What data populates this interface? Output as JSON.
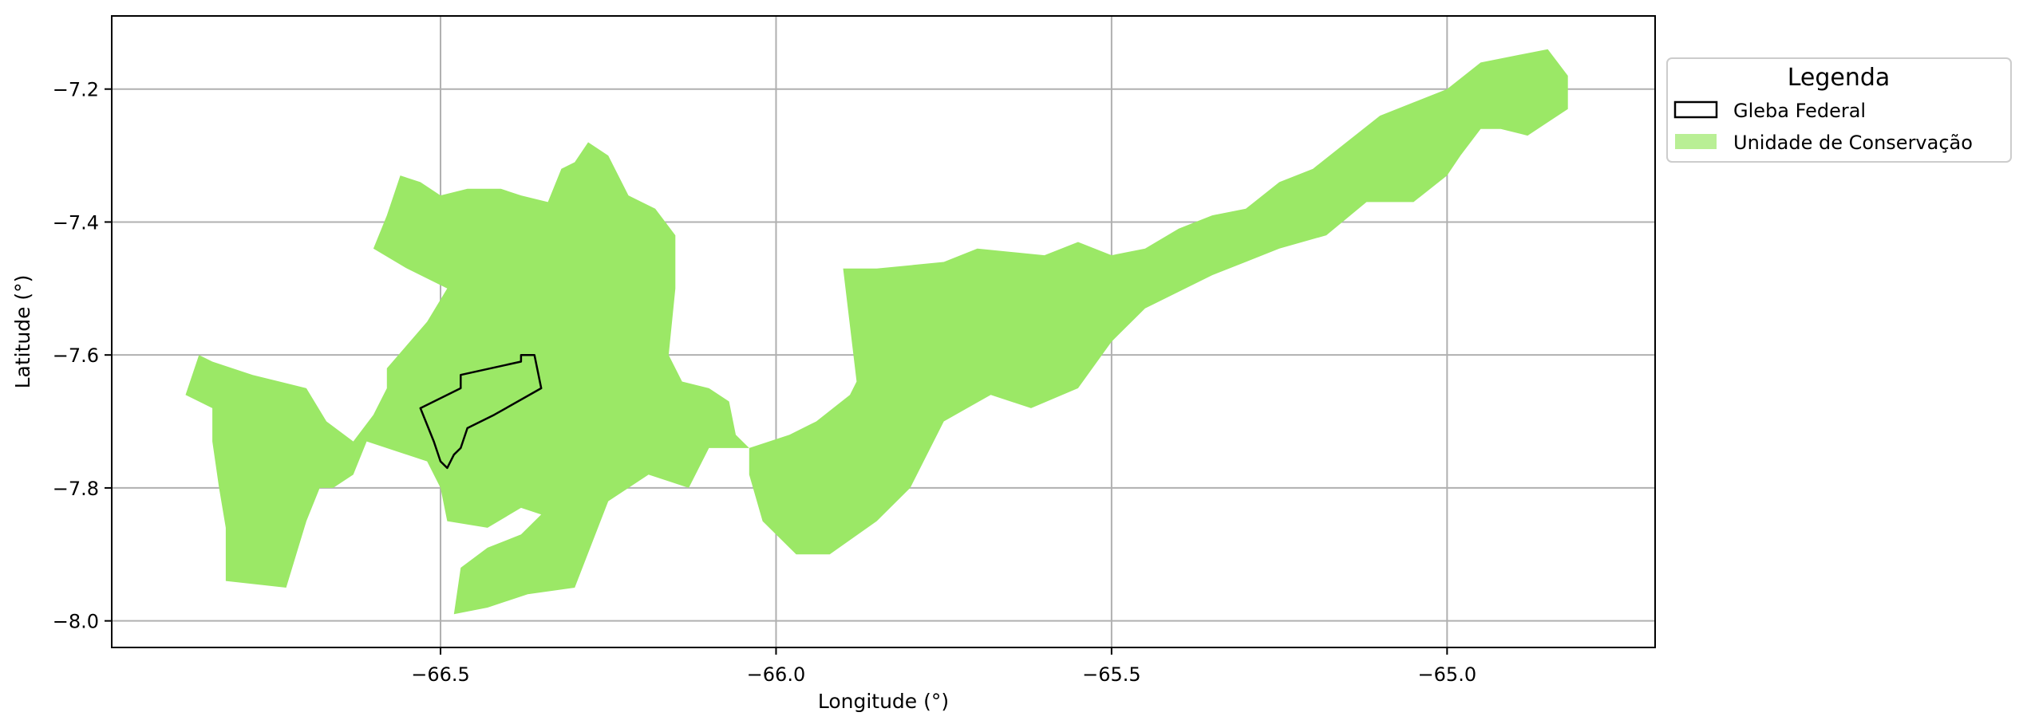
{
  "chart_data": {
    "type": "map",
    "title": "",
    "xlabel": "Longitude (°)",
    "ylabel": "Latitude (°)",
    "xlim": [
      -66.99,
      -64.69
    ],
    "ylim": [
      -8.04,
      -7.09
    ],
    "xticks": [
      -66.5,
      -66.0,
      -65.5,
      -65.0
    ],
    "xtick_labels": [
      "−66.5",
      "−66.0",
      "−65.5",
      "−65.0"
    ],
    "yticks": [
      -7.2,
      -7.4,
      -7.6,
      -7.8,
      -8.0
    ],
    "ytick_labels": [
      "−7.2",
      "−7.4",
      "−7.6",
      "−7.8",
      "−8.0"
    ],
    "grid": true,
    "legend": {
      "title": "Legenda",
      "placement": "upper right outside",
      "entries": [
        {
          "label": "Gleba Federal",
          "style": "outline",
          "color": "#000000"
        },
        {
          "label": "Unidade de Conservação",
          "style": "fill",
          "color": "#9be866"
        }
      ]
    },
    "layers": [
      {
        "name": "Unidade de Conservação",
        "color": "#9be866",
        "polygons": [
          [
            [
              -66.88,
              -7.66
            ],
            [
              -66.86,
              -7.6
            ],
            [
              -66.84,
              -7.61
            ],
            [
              -66.78,
              -7.63
            ],
            [
              -66.74,
              -7.64
            ],
            [
              -66.7,
              -7.65
            ],
            [
              -66.67,
              -7.7
            ],
            [
              -66.63,
              -7.73
            ],
            [
              -66.6,
              -7.69
            ],
            [
              -66.58,
              -7.65
            ],
            [
              -66.58,
              -7.62
            ],
            [
              -66.52,
              -7.55
            ],
            [
              -66.49,
              -7.5
            ],
            [
              -66.55,
              -7.47
            ],
            [
              -66.6,
              -7.44
            ],
            [
              -66.58,
              -7.39
            ],
            [
              -66.56,
              -7.33
            ],
            [
              -66.53,
              -7.34
            ],
            [
              -66.5,
              -7.36
            ],
            [
              -66.46,
              -7.35
            ],
            [
              -66.41,
              -7.35
            ],
            [
              -66.38,
              -7.36
            ],
            [
              -66.34,
              -7.37
            ],
            [
              -66.32,
              -7.32
            ],
            [
              -66.3,
              -7.31
            ],
            [
              -66.28,
              -7.28
            ],
            [
              -66.25,
              -7.3
            ],
            [
              -66.22,
              -7.36
            ],
            [
              -66.18,
              -7.38
            ],
            [
              -66.15,
              -7.42
            ],
            [
              -66.15,
              -7.5
            ],
            [
              -66.16,
              -7.6
            ],
            [
              -66.14,
              -7.64
            ],
            [
              -66.1,
              -7.65
            ],
            [
              -66.07,
              -7.67
            ],
            [
              -66.06,
              -7.72
            ],
            [
              -66.04,
              -7.74
            ],
            [
              -66.1,
              -7.74
            ],
            [
              -66.13,
              -7.8
            ],
            [
              -66.19,
              -7.78
            ],
            [
              -66.25,
              -7.82
            ],
            [
              -66.3,
              -7.95
            ],
            [
              -66.37,
              -7.96
            ],
            [
              -66.43,
              -7.98
            ],
            [
              -66.48,
              -7.99
            ],
            [
              -66.47,
              -7.92
            ],
            [
              -66.43,
              -7.89
            ],
            [
              -66.38,
              -7.87
            ],
            [
              -66.35,
              -7.84
            ],
            [
              -66.38,
              -7.83
            ],
            [
              -66.43,
              -7.86
            ],
            [
              -66.49,
              -7.85
            ],
            [
              -66.5,
              -7.8
            ],
            [
              -66.52,
              -7.76
            ],
            [
              -66.61,
              -7.73
            ],
            [
              -66.63,
              -7.78
            ],
            [
              -66.66,
              -7.8
            ],
            [
              -66.68,
              -7.8
            ],
            [
              -66.7,
              -7.85
            ],
            [
              -66.73,
              -7.95
            ],
            [
              -66.82,
              -7.94
            ],
            [
              -66.82,
              -7.86
            ],
            [
              -66.83,
              -7.8
            ],
            [
              -66.84,
              -7.73
            ],
            [
              -66.84,
              -7.68
            ]
          ],
          [
            [
              -66.04,
              -7.74
            ],
            [
              -65.98,
              -7.72
            ],
            [
              -65.94,
              -7.7
            ],
            [
              -65.89,
              -7.66
            ],
            [
              -65.88,
              -7.64
            ],
            [
              -65.9,
              -7.47
            ],
            [
              -65.85,
              -7.47
            ],
            [
              -65.75,
              -7.46
            ],
            [
              -65.7,
              -7.44
            ],
            [
              -65.6,
              -7.45
            ],
            [
              -65.55,
              -7.43
            ],
            [
              -65.5,
              -7.45
            ],
            [
              -65.45,
              -7.44
            ],
            [
              -65.4,
              -7.41
            ],
            [
              -65.35,
              -7.39
            ],
            [
              -65.3,
              -7.38
            ],
            [
              -65.25,
              -7.34
            ],
            [
              -65.2,
              -7.32
            ],
            [
              -65.15,
              -7.28
            ],
            [
              -65.1,
              -7.24
            ],
            [
              -65.05,
              -7.22
            ],
            [
              -65.0,
              -7.2
            ],
            [
              -64.95,
              -7.16
            ],
            [
              -64.9,
              -7.15
            ],
            [
              -64.85,
              -7.14
            ],
            [
              -64.82,
              -7.18
            ],
            [
              -64.82,
              -7.23
            ],
            [
              -64.85,
              -7.25
            ],
            [
              -64.88,
              -7.27
            ],
            [
              -64.92,
              -7.26
            ],
            [
              -64.95,
              -7.26
            ],
            [
              -64.98,
              -7.3
            ],
            [
              -65.0,
              -7.33
            ],
            [
              -65.05,
              -7.37
            ],
            [
              -65.12,
              -7.37
            ],
            [
              -65.18,
              -7.42
            ],
            [
              -65.25,
              -7.44
            ],
            [
              -65.3,
              -7.46
            ],
            [
              -65.35,
              -7.48
            ],
            [
              -65.45,
              -7.53
            ],
            [
              -65.5,
              -7.58
            ],
            [
              -65.55,
              -7.65
            ],
            [
              -65.62,
              -7.68
            ],
            [
              -65.68,
              -7.66
            ],
            [
              -65.75,
              -7.7
            ],
            [
              -65.8,
              -7.8
            ],
            [
              -65.85,
              -7.85
            ],
            [
              -65.92,
              -7.9
            ],
            [
              -65.97,
              -7.9
            ],
            [
              -66.02,
              -7.85
            ],
            [
              -66.04,
              -7.78
            ]
          ]
        ]
      },
      {
        "name": "Gleba Federal",
        "color": "#000000",
        "polygons": [
          [
            [
              -66.38,
              -7.6
            ],
            [
              -66.36,
              -7.6
            ],
            [
              -66.35,
              -7.65
            ],
            [
              -66.42,
              -7.69
            ],
            [
              -66.46,
              -7.71
            ],
            [
              -66.47,
              -7.74
            ],
            [
              -66.48,
              -7.75
            ],
            [
              -66.49,
              -7.77
            ],
            [
              -66.5,
              -7.76
            ],
            [
              -66.51,
              -7.73
            ],
            [
              -66.53,
              -7.68
            ],
            [
              -66.47,
              -7.65
            ],
            [
              -66.47,
              -7.63
            ],
            [
              -66.38,
              -7.61
            ]
          ]
        ]
      }
    ]
  }
}
